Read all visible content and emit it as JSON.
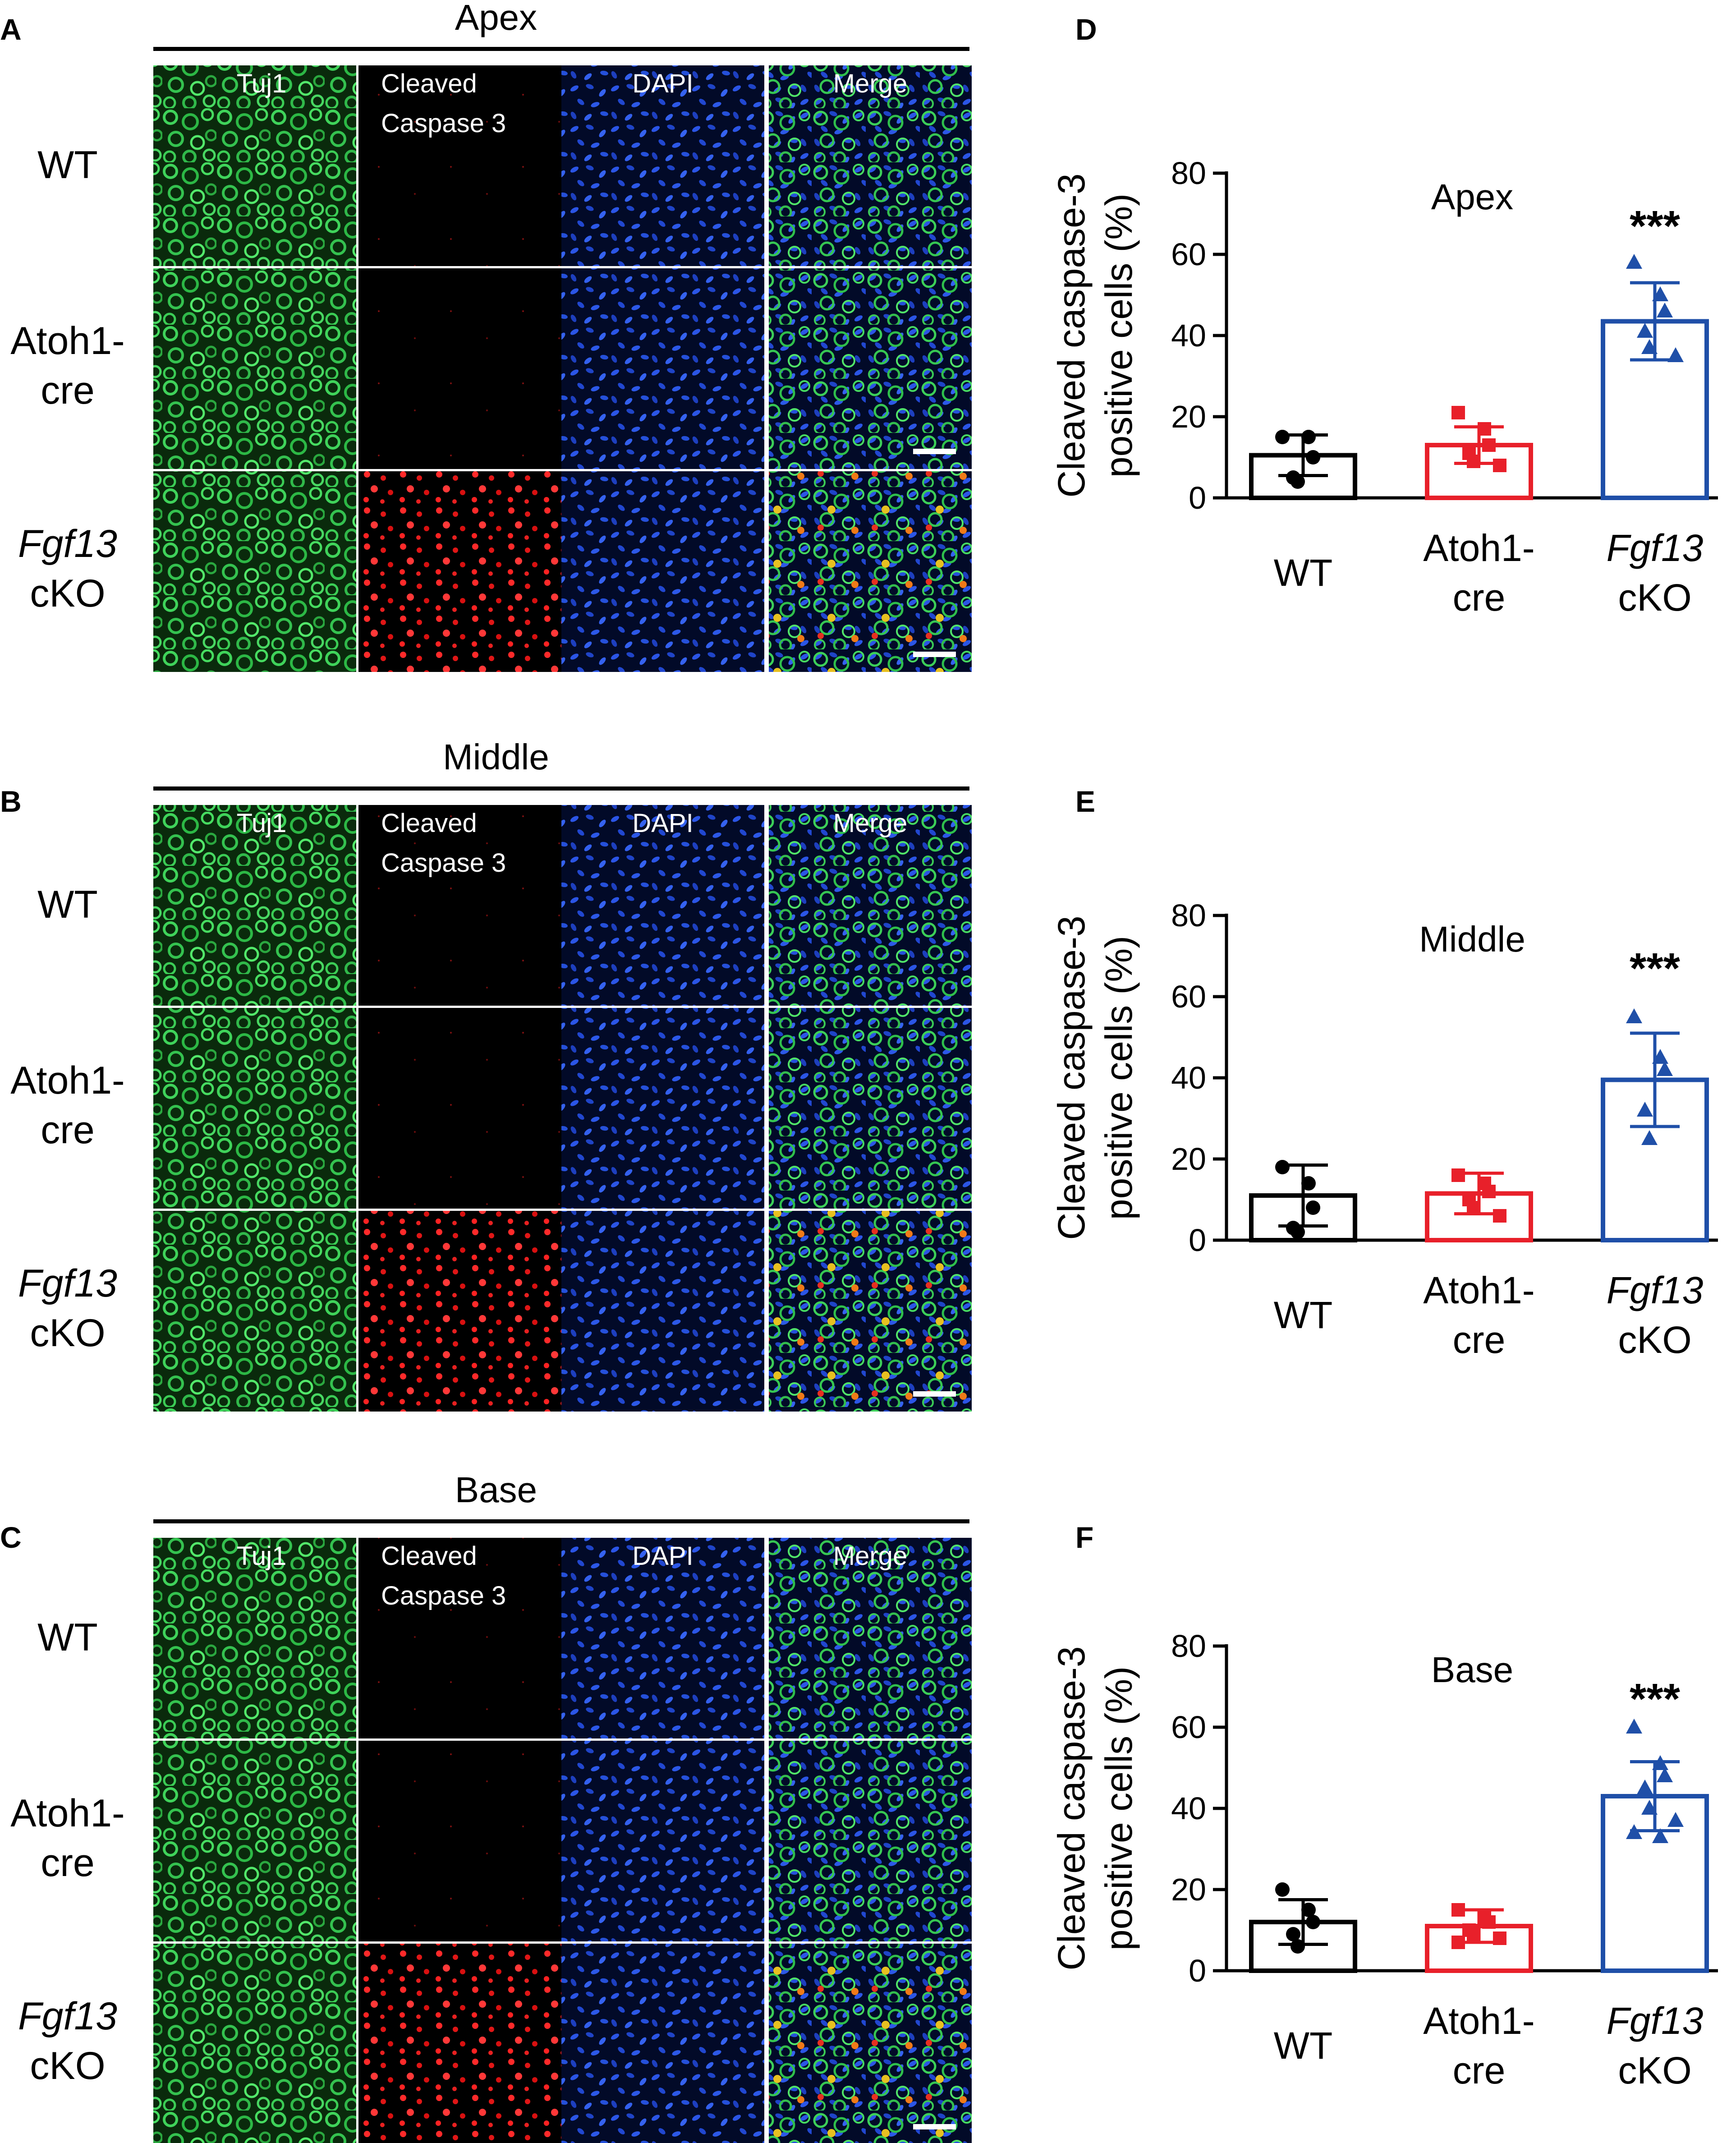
{
  "figure": {
    "panel_letters": [
      "A",
      "B",
      "C",
      "D",
      "E",
      "F"
    ],
    "column_headers": {
      "tuj1": "Tuj1",
      "caspase_line1": "Cleaved",
      "caspase_line2": "Caspase 3",
      "dapi": "DAPI",
      "merge": "Merge"
    },
    "row_labels": {
      "wt": "WT",
      "atoh_line1": "Atoh1-",
      "atoh_line2": "cre",
      "fgf_line1": "Fgf13",
      "fgf_line2": "cKO"
    },
    "image_panels": [
      {
        "letter": "A",
        "region": "Apex"
      },
      {
        "letter": "B",
        "region": "Middle"
      },
      {
        "letter": "C",
        "region": "Base"
      }
    ],
    "colors": {
      "tuj1_green": "#1fa83a",
      "caspase_red": "#ff1a1a",
      "dapi_blue": "#1a3fd6",
      "wt_black": "#000000",
      "atoh1_red": "#e8202a",
      "fgf13_blue": "#1f4fa8"
    }
  },
  "chart_data": [
    {
      "type": "bar",
      "panel": "D",
      "title": "Apex",
      "ylabel_line1": "Cleaved caspase-3",
      "ylabel_line2": "positive cells (%)",
      "ylim": [
        0,
        80
      ],
      "yticks": [
        "0",
        "20",
        "40",
        "60",
        "80"
      ],
      "significance": "***",
      "categories": [
        {
          "line1": "WT",
          "line2": ""
        },
        {
          "line1": "Atoh1-",
          "line2": "cre"
        },
        {
          "line1": "Fgf13",
          "line2": "cKO"
        }
      ],
      "values": [
        10.5,
        13,
        43.5
      ],
      "errors": [
        5,
        4.5,
        9.5
      ],
      "points": [
        [
          15,
          15,
          10,
          5,
          4
        ],
        [
          21,
          17,
          13,
          11,
          9,
          8
        ],
        [
          58,
          50,
          46,
          41,
          37,
          35
        ]
      ]
    },
    {
      "type": "bar",
      "panel": "E",
      "title": "Middle",
      "ylabel_line1": "Cleaved caspase-3",
      "ylabel_line2": "positive cells (%)",
      "ylim": [
        0,
        80
      ],
      "yticks": [
        "0",
        "20",
        "40",
        "60",
        "80"
      ],
      "significance": "***",
      "categories": [
        {
          "line1": "WT",
          "line2": ""
        },
        {
          "line1": "Atoh1-",
          "line2": "cre"
        },
        {
          "line1": "Fgf13",
          "line2": "cKO"
        }
      ],
      "values": [
        11,
        11.5,
        39.5
      ],
      "errors": [
        7.5,
        5,
        11.5
      ],
      "points": [
        [
          18,
          14,
          8,
          3,
          2
        ],
        [
          16,
          14,
          12,
          10,
          8,
          6
        ],
        [
          55,
          45,
          42,
          32,
          25
        ]
      ]
    },
    {
      "type": "bar",
      "panel": "F",
      "title": "Base",
      "ylabel_line1": "Cleaved caspase-3",
      "ylabel_line2": "positive cells (%)",
      "ylim": [
        0,
        80
      ],
      "yticks": [
        "0",
        "20",
        "40",
        "60",
        "80"
      ],
      "significance": "***",
      "categories": [
        {
          "line1": "WT",
          "line2": ""
        },
        {
          "line1": "Atoh1-",
          "line2": "cre"
        },
        {
          "line1": "Fgf13",
          "line2": "cKO"
        }
      ],
      "values": [
        12,
        11,
        43
      ],
      "errors": [
        5.5,
        4,
        8.5
      ],
      "points": [
        [
          20,
          15,
          12,
          9,
          6
        ],
        [
          15,
          13,
          12,
          10,
          9,
          8,
          7
        ],
        [
          60,
          51,
          48,
          45,
          40,
          37,
          34,
          33
        ]
      ]
    }
  ]
}
